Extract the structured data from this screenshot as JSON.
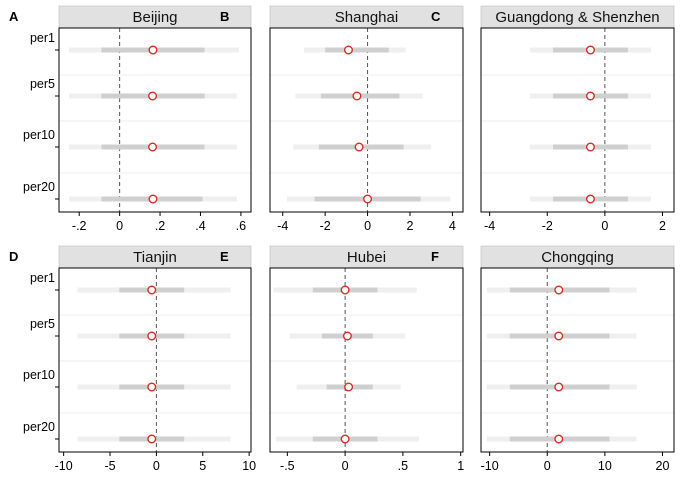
{
  "chart_data": {
    "type": "forest",
    "row_labels": [
      "per1",
      "per5",
      "per10",
      "per20"
    ],
    "colors": {
      "strip": "#e1e1e1",
      "ci_outer": "#efefef",
      "ci_inner": "#cfcfcf",
      "marker": "#d62a20",
      "zero_line": "#555555"
    },
    "panels": [
      {
        "letter": "A",
        "title": "Beijing",
        "xlim": [
          -0.3,
          0.65
        ],
        "ticks": [
          -0.2,
          0,
          0.2,
          0.4,
          0.6
        ],
        "tick_labels": [
          "-.2",
          "0",
          ".2",
          ".4",
          ".6"
        ],
        "show_row_labels": true,
        "rows": [
          {
            "est": 0.165,
            "ci_inner": [
              -0.09,
              0.42
            ],
            "ci_outer": [
              -0.25,
              0.59
            ]
          },
          {
            "est": 0.163,
            "ci_inner": [
              -0.09,
              0.42
            ],
            "ci_outer": [
              -0.25,
              0.58
            ]
          },
          {
            "est": 0.163,
            "ci_inner": [
              -0.09,
              0.42
            ],
            "ci_outer": [
              -0.25,
              0.58
            ]
          },
          {
            "est": 0.165,
            "ci_inner": [
              -0.09,
              0.41
            ],
            "ci_outer": [
              -0.25,
              0.58
            ]
          }
        ]
      },
      {
        "letter": "B",
        "title": "Shanghai",
        "xlim": [
          -4.6,
          4.5
        ],
        "ticks": [
          -4,
          -2,
          0,
          2,
          4
        ],
        "tick_labels": [
          "-4",
          "-2",
          "0",
          "2",
          "4"
        ],
        "show_row_labels": false,
        "rows": [
          {
            "est": -0.9,
            "ci_inner": [
              -2.0,
              1.0
            ],
            "ci_outer": [
              -3.0,
              1.8
            ]
          },
          {
            "est": -0.5,
            "ci_inner": [
              -2.2,
              1.5
            ],
            "ci_outer": [
              -3.4,
              2.6
            ]
          },
          {
            "est": -0.4,
            "ci_inner": [
              -2.3,
              1.7
            ],
            "ci_outer": [
              -3.5,
              3.0
            ]
          },
          {
            "est": 0.0,
            "ci_inner": [
              -2.5,
              2.5
            ],
            "ci_outer": [
              -3.8,
              3.9
            ]
          }
        ]
      },
      {
        "letter": "C",
        "title": "Guangdong & Shenzhen",
        "xlim": [
          -4.3,
          2.4
        ],
        "ticks": [
          -4,
          -2,
          0,
          2
        ],
        "tick_labels": [
          "-4",
          "-2",
          "0",
          "2"
        ],
        "show_row_labels": false,
        "rows": [
          {
            "est": -0.5,
            "ci_inner": [
              -1.8,
              0.8
            ],
            "ci_outer": [
              -2.6,
              1.6
            ]
          },
          {
            "est": -0.5,
            "ci_inner": [
              -1.8,
              0.8
            ],
            "ci_outer": [
              -2.6,
              1.6
            ]
          },
          {
            "est": -0.5,
            "ci_inner": [
              -1.8,
              0.8
            ],
            "ci_outer": [
              -2.6,
              1.6
            ]
          },
          {
            "est": -0.5,
            "ci_inner": [
              -1.8,
              0.8
            ],
            "ci_outer": [
              -2.6,
              1.6
            ]
          }
        ]
      },
      {
        "letter": "D",
        "title": "Tianjin",
        "xlim": [
          -10.5,
          10.2
        ],
        "ticks": [
          -10,
          -5,
          0,
          5,
          10
        ],
        "tick_labels": [
          "-10",
          "-5",
          "0",
          "5",
          "10"
        ],
        "show_row_labels": true,
        "rows": [
          {
            "est": -0.5,
            "ci_inner": [
              -4.0,
              3.0
            ],
            "ci_outer": [
              -8.5,
              8.0
            ]
          },
          {
            "est": -0.5,
            "ci_inner": [
              -4.0,
              3.0
            ],
            "ci_outer": [
              -8.5,
              8.0
            ]
          },
          {
            "est": -0.5,
            "ci_inner": [
              -4.0,
              3.0
            ],
            "ci_outer": [
              -8.5,
              8.0
            ]
          },
          {
            "est": -0.5,
            "ci_inner": [
              -4.0,
              3.0
            ],
            "ci_outer": [
              -8.5,
              8.0
            ]
          }
        ]
      },
      {
        "letter": "E",
        "title": "Hubei",
        "xlim": [
          -0.65,
          1.02
        ],
        "ticks": [
          -0.5,
          0,
          0.5,
          1
        ],
        "tick_labels": [
          "-.5",
          "0",
          ".5",
          "1"
        ],
        "show_row_labels": false,
        "rows": [
          {
            "est": 0.0,
            "ci_inner": [
              -0.28,
              0.28
            ],
            "ci_outer": [
              -0.62,
              0.62
            ]
          },
          {
            "est": 0.02,
            "ci_inner": [
              -0.2,
              0.24
            ],
            "ci_outer": [
              -0.48,
              0.52
            ]
          },
          {
            "est": 0.03,
            "ci_inner": [
              -0.16,
              0.24
            ],
            "ci_outer": [
              -0.42,
              0.48
            ]
          },
          {
            "est": 0.0,
            "ci_inner": [
              -0.28,
              0.28
            ],
            "ci_outer": [
              -0.6,
              0.64
            ]
          }
        ]
      },
      {
        "letter": "F",
        "title": "Chongqing",
        "xlim": [
          -11.5,
          22.0
        ],
        "ticks": [
          -10,
          0,
          10,
          20
        ],
        "tick_labels": [
          "-10",
          "0",
          "10",
          "20"
        ],
        "show_row_labels": false,
        "rows": [
          {
            "est": 2.0,
            "ci_inner": [
              -6.5,
              10.8
            ],
            "ci_outer": [
              -10.5,
              15.5
            ]
          },
          {
            "est": 2.0,
            "ci_inner": [
              -6.5,
              10.8
            ],
            "ci_outer": [
              -10.5,
              15.5
            ]
          },
          {
            "est": 2.0,
            "ci_inner": [
              -6.5,
              10.8
            ],
            "ci_outer": [
              -10.5,
              15.5
            ]
          },
          {
            "est": 2.0,
            "ci_inner": [
              -6.5,
              10.8
            ],
            "ci_outer": [
              -10.5,
              15.5
            ]
          }
        ]
      }
    ]
  }
}
